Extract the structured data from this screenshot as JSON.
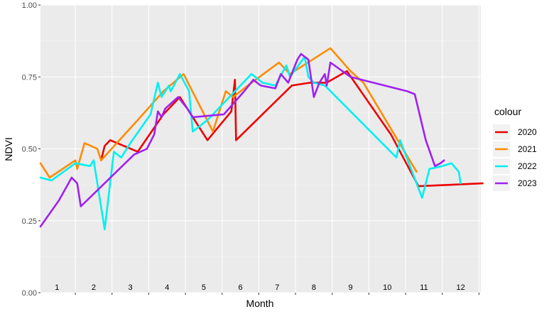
{
  "chart_data": {
    "type": "line",
    "xlabel": "Month",
    "ylabel": "NDVI",
    "ylim": [
      0,
      1
    ],
    "xlim": [
      0.55,
      12.55
    ],
    "x_tick_labels": [
      "1",
      "2",
      "3",
      "4",
      "5",
      "6",
      "7",
      "8",
      "9",
      "10",
      "11",
      "12"
    ],
    "y_ticks": [
      0.0,
      0.25,
      0.5,
      0.75,
      1.0
    ],
    "y_tick_labels": [
      "0.00",
      "0.25",
      "0.50",
      "0.75",
      "1.00"
    ],
    "grid": true,
    "panel_color": "#ebebeb",
    "legend": {
      "title": "colour",
      "position": "right"
    },
    "series": [
      {
        "name": "2020",
        "color": "#ee0000",
        "points": [
          [
            2.2,
            0.46
          ],
          [
            2.3,
            0.51
          ],
          [
            2.45,
            0.53
          ],
          [
            3.2,
            0.49
          ],
          [
            3.9,
            0.62
          ],
          [
            4.35,
            0.68
          ],
          [
            5.1,
            0.53
          ],
          [
            5.75,
            0.63
          ],
          [
            5.85,
            0.74
          ],
          [
            5.88,
            0.53
          ],
          [
            6.2,
            0.57
          ],
          [
            7.4,
            0.72
          ],
          [
            7.9,
            0.73
          ],
          [
            8.35,
            0.73
          ],
          [
            8.9,
            0.77
          ],
          [
            10.1,
            0.55
          ],
          [
            10.85,
            0.37
          ],
          [
            12.6,
            0.38
          ]
        ]
      },
      {
        "name": "2021",
        "color": "#ff8c00",
        "points": [
          [
            0.55,
            0.45
          ],
          [
            0.8,
            0.4
          ],
          [
            1.5,
            0.46
          ],
          [
            1.55,
            0.43
          ],
          [
            1.75,
            0.52
          ],
          [
            2.1,
            0.5
          ],
          [
            2.2,
            0.46
          ],
          [
            3.2,
            0.6
          ],
          [
            3.9,
            0.7
          ],
          [
            4.45,
            0.76
          ],
          [
            5.25,
            0.56
          ],
          [
            5.6,
            0.7
          ],
          [
            5.8,
            0.68
          ],
          [
            6.2,
            0.72
          ],
          [
            7.05,
            0.8
          ],
          [
            7.35,
            0.76
          ],
          [
            8.45,
            0.85
          ],
          [
            9.0,
            0.77
          ],
          [
            9.35,
            0.73
          ],
          [
            10.8,
            0.42
          ]
        ]
      },
      {
        "name": "2022",
        "color": "#00f0f0",
        "points": [
          [
            0.55,
            0.4
          ],
          [
            0.85,
            0.39
          ],
          [
            1.5,
            0.45
          ],
          [
            1.9,
            0.44
          ],
          [
            2.0,
            0.46
          ],
          [
            2.3,
            0.22
          ],
          [
            2.55,
            0.49
          ],
          [
            2.75,
            0.47
          ],
          [
            3.0,
            0.52
          ],
          [
            3.55,
            0.62
          ],
          [
            3.75,
            0.73
          ],
          [
            3.85,
            0.68
          ],
          [
            4.05,
            0.72
          ],
          [
            4.1,
            0.7
          ],
          [
            4.35,
            0.76
          ],
          [
            4.6,
            0.7
          ],
          [
            4.7,
            0.56
          ],
          [
            5.1,
            0.6
          ],
          [
            6.3,
            0.76
          ],
          [
            6.6,
            0.73
          ],
          [
            6.95,
            0.72
          ],
          [
            7.25,
            0.79
          ],
          [
            7.35,
            0.75
          ],
          [
            7.75,
            0.82
          ],
          [
            7.85,
            0.75
          ],
          [
            8.0,
            0.73
          ],
          [
            8.3,
            0.72
          ],
          [
            10.25,
            0.47
          ],
          [
            10.35,
            0.53
          ],
          [
            10.95,
            0.33
          ],
          [
            11.15,
            0.43
          ],
          [
            11.5,
            0.44
          ],
          [
            11.75,
            0.45
          ],
          [
            11.95,
            0.42
          ],
          [
            12.0,
            0.38
          ]
        ]
      },
      {
        "name": "2023",
        "color": "#a020f0",
        "points": [
          [
            0.55,
            0.23
          ],
          [
            1.05,
            0.32
          ],
          [
            1.4,
            0.4
          ],
          [
            1.55,
            0.38
          ],
          [
            1.65,
            0.3
          ],
          [
            3.1,
            0.48
          ],
          [
            3.45,
            0.5
          ],
          [
            3.65,
            0.55
          ],
          [
            3.75,
            0.63
          ],
          [
            3.85,
            0.61
          ],
          [
            3.95,
            0.64
          ],
          [
            4.3,
            0.68
          ],
          [
            4.55,
            0.64
          ],
          [
            4.7,
            0.61
          ],
          [
            5.55,
            0.62
          ],
          [
            6.1,
            0.7
          ],
          [
            6.35,
            0.74
          ],
          [
            6.55,
            0.72
          ],
          [
            6.95,
            0.71
          ],
          [
            7.1,
            0.76
          ],
          [
            7.3,
            0.73
          ],
          [
            7.55,
            0.81
          ],
          [
            7.65,
            0.83
          ],
          [
            7.85,
            0.81
          ],
          [
            8.0,
            0.68
          ],
          [
            8.15,
            0.73
          ],
          [
            8.3,
            0.76
          ],
          [
            8.35,
            0.72
          ],
          [
            8.45,
            0.8
          ],
          [
            9.0,
            0.75
          ],
          [
            10.55,
            0.7
          ],
          [
            10.75,
            0.69
          ],
          [
            11.05,
            0.53
          ],
          [
            11.3,
            0.44
          ],
          [
            11.45,
            0.45
          ],
          [
            11.55,
            0.46
          ]
        ]
      }
    ]
  }
}
